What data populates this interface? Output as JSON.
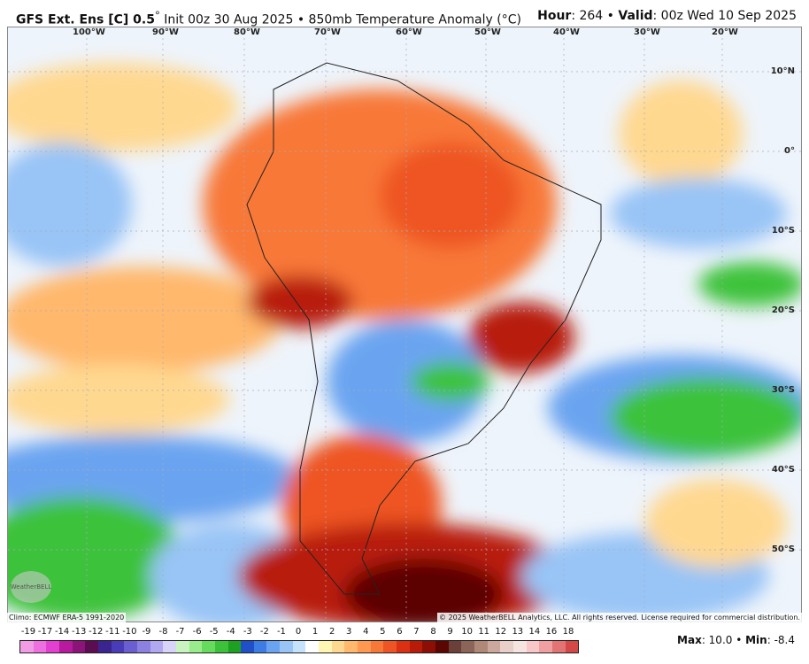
{
  "header": {
    "model": "GFS Ext.  Ens [C] 0.5",
    "deg": "°",
    "init": " Init 00z 30 Aug 2025 • 850mb Temperature Anomaly (°C)",
    "hour_label": "Hour",
    "hour": ": 264 • ",
    "valid_label": "Valid",
    "valid": ": 00z Wed 10 Sep 2025"
  },
  "longitudes": [
    "100°W",
    "90°W",
    "80°W",
    "70°W",
    "60°W",
    "50°W",
    "40°W",
    "30°W",
    "20°W"
  ],
  "latitudes": [
    "10°N",
    "0°",
    "10°S",
    "20°S",
    "30°S",
    "40°S",
    "50°S"
  ],
  "climo": "Climo: ECMWF ERA-5 1991-2020",
  "copyright": "© 2025 WeatherBELL Analytics, LLC. All rights reserved. License required for commercial distribution.",
  "logo_text": "WeatherBELL",
  "colorbar": {
    "labels": [
      "-19",
      "-17",
      "-14",
      "-13",
      "-12",
      "-11",
      "-10",
      "-9",
      "-8",
      "-7",
      "-6",
      "-5",
      "-4",
      "-3",
      "-2",
      "-1",
      "0",
      "1",
      "2",
      "3",
      "4",
      "5",
      "6",
      "7",
      "8",
      "9",
      "10",
      "11",
      "12",
      "13",
      "14",
      "16",
      "18"
    ],
    "colors": [
      "#f29ce6",
      "#ee6fe0",
      "#e33fd0",
      "#b81a9e",
      "#8a1478",
      "#5c0c50",
      "#3a2590",
      "#4a3cb8",
      "#6a5ed0",
      "#8c80e0",
      "#b0a8f0",
      "#d8d4f8",
      "#c8f4c0",
      "#98ec8c",
      "#66dc5c",
      "#3cc23a",
      "#1ea022",
      "#2050c8",
      "#3c7ce4",
      "#6aa4f0",
      "#98c4f6",
      "#c4e2fa",
      "#ffffff",
      "#fff6b4",
      "#ffd890",
      "#ffb86c",
      "#ff9850",
      "#f87838",
      "#ee5424",
      "#dc3012",
      "#b81c08",
      "#8c0e04",
      "#5c0604",
      "#6a4038",
      "#8c6458",
      "#b08878",
      "#cca89c",
      "#e8d0c8",
      "#f6e4e0",
      "#f8c8c8",
      "#f0a0a0",
      "#e47474",
      "#d44848"
    ]
  },
  "max_label": "Max",
  "max": ": 10.0 • ",
  "min_label": "Min",
  "min": ": -8.4"
}
